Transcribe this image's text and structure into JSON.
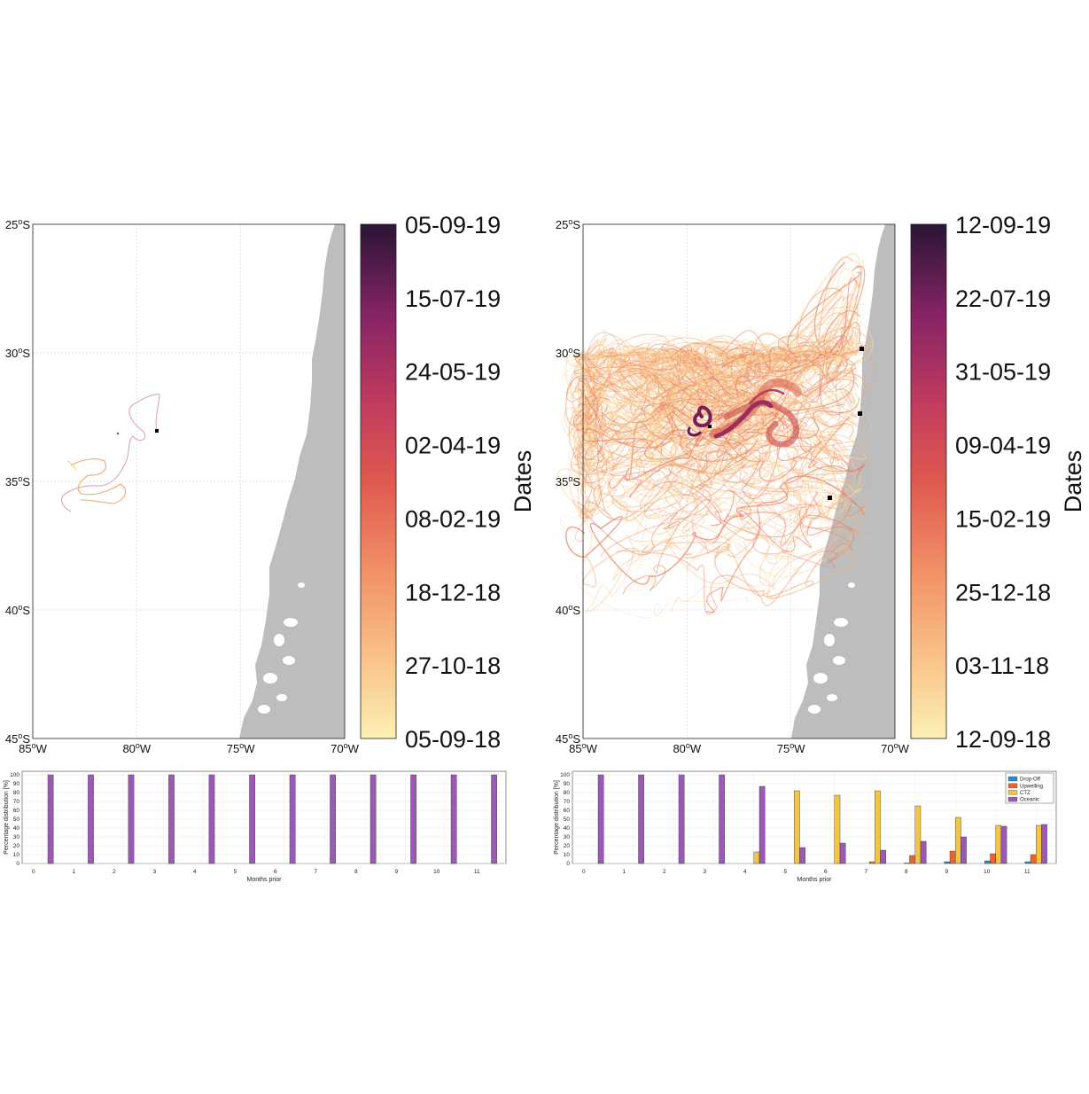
{
  "colors": {
    "land": "#bdbdbd",
    "oceanic": "#9b59b6",
    "ctz": "#f4c542",
    "upwelling": "#e8642c",
    "dropoff": "#2e8bc9",
    "grid": "#d9d9d9"
  },
  "chart_data": [
    {
      "type": "map",
      "panel": "left",
      "x_ticks": [
        "85°W",
        "80°W",
        "75°W",
        "70°W"
      ],
      "y_ticks": [
        "25°S",
        "30°S",
        "35°S",
        "40°S",
        "45°S"
      ],
      "xlim": [
        -85,
        -70
      ],
      "ylim": [
        -45,
        -25
      ],
      "colorbar": {
        "label": "Dates",
        "ticks": [
          "05-09-19",
          "15-07-19",
          "24-05-19",
          "02-04-19",
          "08-02-19",
          "18-12-18",
          "27-10-18",
          "05-09-18"
        ]
      },
      "release_sites": [
        [
          -79.1,
          -33.6
        ]
      ]
    },
    {
      "type": "map",
      "panel": "right",
      "x_ticks": [
        "85°W",
        "80°W",
        "75°W",
        "70°W"
      ],
      "y_ticks": [
        "25°S",
        "30°S",
        "35°S",
        "40°S",
        "45°S"
      ],
      "xlim": [
        -85,
        -70
      ],
      "ylim": [
        -45,
        -25
      ],
      "colorbar": {
        "label": "Dates",
        "ticks": [
          "12-09-19",
          "22-07-19",
          "31-05-19",
          "09-04-19",
          "15-02-19",
          "25-12-18",
          "03-11-18",
          "12-09-18"
        ]
      },
      "release_sites": [
        [
          -71.6,
          -30.3
        ],
        [
          -71.7,
          -33.0
        ],
        [
          -73.2,
          -36.3
        ],
        [
          -79.0,
          -33.5
        ]
      ]
    },
    {
      "type": "bar",
      "panel": "left-bottom",
      "xlabel": "Months prior",
      "ylabel": "Percentage distribution [%]",
      "categories": [
        "0",
        "1",
        "2",
        "3",
        "4",
        "5",
        "6",
        "7",
        "8",
        "9",
        "10",
        "11"
      ],
      "yticks": [
        "0",
        "10",
        "20",
        "30",
        "40",
        "50",
        "60",
        "70",
        "80",
        "90",
        "100"
      ],
      "ylim": [
        0,
        100
      ],
      "series": [
        {
          "values": [
            0,
            0,
            0,
            0,
            0,
            0,
            0,
            0,
            0,
            0,
            0,
            0
          ]
        },
        {
          "values": [
            0,
            0,
            0,
            0,
            0,
            0,
            0,
            0,
            0,
            0,
            0,
            0
          ]
        },
        {
          "values": [
            0,
            0,
            0,
            0,
            0,
            0,
            0,
            0,
            0,
            0,
            0,
            0
          ]
        },
        {
          "values": [
            100,
            100,
            100,
            100,
            100,
            100,
            100,
            100,
            100,
            100,
            100,
            100
          ]
        }
      ]
    },
    {
      "type": "bar",
      "panel": "right-bottom",
      "xlabel": "Months prior",
      "ylabel": "Percentage distribution [%]",
      "categories": [
        "0",
        "1",
        "2",
        "3",
        "4",
        "5",
        "6",
        "7",
        "8",
        "9",
        "10",
        "11"
      ],
      "yticks": [
        "0",
        "10",
        "20",
        "30",
        "40",
        "50",
        "60",
        "70",
        "80",
        "90",
        "100"
      ],
      "ylim": [
        0,
        100
      ],
      "legend_position": "top-right",
      "series": [
        {
          "name": "Drop-Off",
          "values": [
            0,
            0,
            0,
            0,
            0,
            0,
            0,
            0,
            0.5,
            2,
            3,
            2
          ]
        },
        {
          "name": "Upwelling",
          "values": [
            0,
            0,
            0,
            0,
            0,
            0,
            0,
            2,
            9,
            14,
            11,
            10
          ]
        },
        {
          "name": "CTZ",
          "values": [
            0,
            0,
            0,
            0,
            13,
            82,
            77,
            82,
            65,
            52,
            43,
            43
          ]
        },
        {
          "name": "Oceanic",
          "values": [
            100,
            100,
            100,
            100,
            87,
            18,
            23,
            15,
            25,
            30,
            42,
            44
          ]
        }
      ]
    }
  ]
}
